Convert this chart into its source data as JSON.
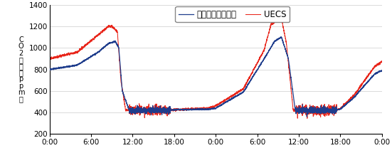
{
  "ylim": [
    200,
    1400
  ],
  "yticks": [
    200,
    400,
    600,
    800,
    1000,
    1200,
    1400
  ],
  "xtick_labels": [
    "0:00",
    "6:00",
    "12:00",
    "18:00",
    "0:00",
    "6:00",
    "12:00",
    "18:00",
    "0:00"
  ],
  "legend_pro": "プロファインダー",
  "legend_uecs": "UECS",
  "color_pro": "#1f3d8c",
  "color_uecs": "#e8251a",
  "figsize": [
    5.51,
    2.08
  ],
  "dpi": 100,
  "ylabel_text": "C\nO\n2\n濃\n度\n（\np\np\nm\n）"
}
